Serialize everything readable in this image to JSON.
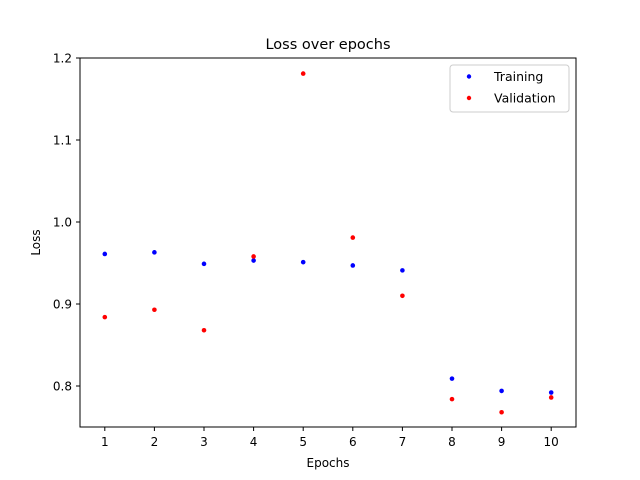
{
  "chart_data": {
    "type": "scatter",
    "title": "Loss over epochs",
    "xlabel": "Epochs",
    "ylabel": "Loss",
    "x": [
      1,
      2,
      3,
      4,
      5,
      6,
      7,
      8,
      9,
      10
    ],
    "xlim": [
      0.5,
      10.5
    ],
    "ylim": [
      0.75,
      1.2
    ],
    "xticks": [
      1,
      2,
      3,
      4,
      5,
      6,
      7,
      8,
      9,
      10
    ],
    "yticks": [
      0.8,
      0.9,
      1.0,
      1.1,
      1.2
    ],
    "ytick_labels": [
      "0.8",
      "0.9",
      "1.0",
      "1.1",
      "1.2"
    ],
    "grid": false,
    "legend_position": "top-right",
    "series": [
      {
        "name": "Training",
        "color": "#0000ff",
        "values": [
          0.961,
          0.963,
          0.949,
          0.953,
          0.951,
          0.947,
          0.941,
          0.809,
          0.794,
          0.792
        ]
      },
      {
        "name": "Validation",
        "color": "#ff0000",
        "values": [
          0.884,
          0.893,
          0.868,
          0.958,
          1.181,
          0.981,
          0.91,
          0.784,
          0.768,
          0.786
        ]
      }
    ]
  }
}
